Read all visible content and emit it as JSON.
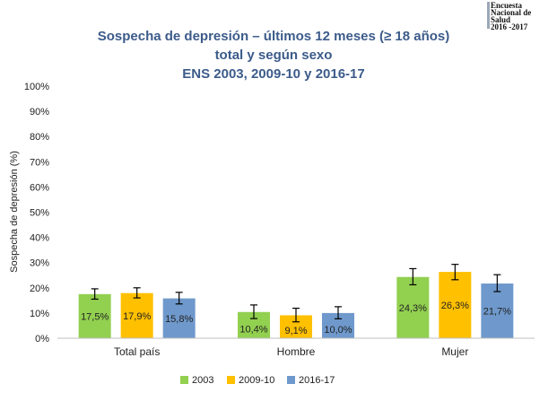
{
  "logo": {
    "lines": [
      "Encuesta",
      "Nacional de",
      "Salud",
      "2016 -2017"
    ]
  },
  "chart_data": {
    "type": "bar",
    "title": [
      "Sospecha de depresión – últimos 12 meses (≥ 18 años)",
      "total y según sexo",
      "ENS 2003, 2009-10 y 2016-17"
    ],
    "ylabel": "Sospecha de depresión (%)",
    "xlabel": "",
    "ylim": [
      0,
      100
    ],
    "yticks": [
      "0%",
      "10%",
      "20%",
      "30%",
      "40%",
      "50%",
      "60%",
      "70%",
      "80%",
      "90%",
      "100%"
    ],
    "categories": [
      "Total país",
      "Hombre",
      "Mujer"
    ],
    "series": [
      {
        "name": "2003",
        "color": "#92d050",
        "values": [
          17.5,
          10.4,
          24.3
        ],
        "labels": [
          "17,5%",
          "10,4%",
          "24,3%"
        ],
        "err_low": [
          15.5,
          7.8,
          21.2
        ],
        "err_high": [
          19.6,
          13.2,
          27.6
        ]
      },
      {
        "name": "2009-10",
        "color": "#ffc000",
        "values": [
          17.9,
          9.1,
          26.3
        ],
        "labels": [
          "17,9%",
          "9,1%",
          "26,3%"
        ],
        "err_low": [
          16.0,
          6.5,
          23.2
        ],
        "err_high": [
          20.0,
          11.9,
          29.3
        ]
      },
      {
        "name": "2016-17",
        "color": "#6f99cc",
        "values": [
          15.8,
          10.0,
          21.7
        ],
        "labels": [
          "15,8%",
          "10,0%",
          "21,7%"
        ],
        "err_low": [
          13.6,
          7.7,
          18.5
        ],
        "err_high": [
          18.2,
          12.5,
          25.2
        ]
      }
    ],
    "legend_position": "bottom",
    "grid": false
  }
}
